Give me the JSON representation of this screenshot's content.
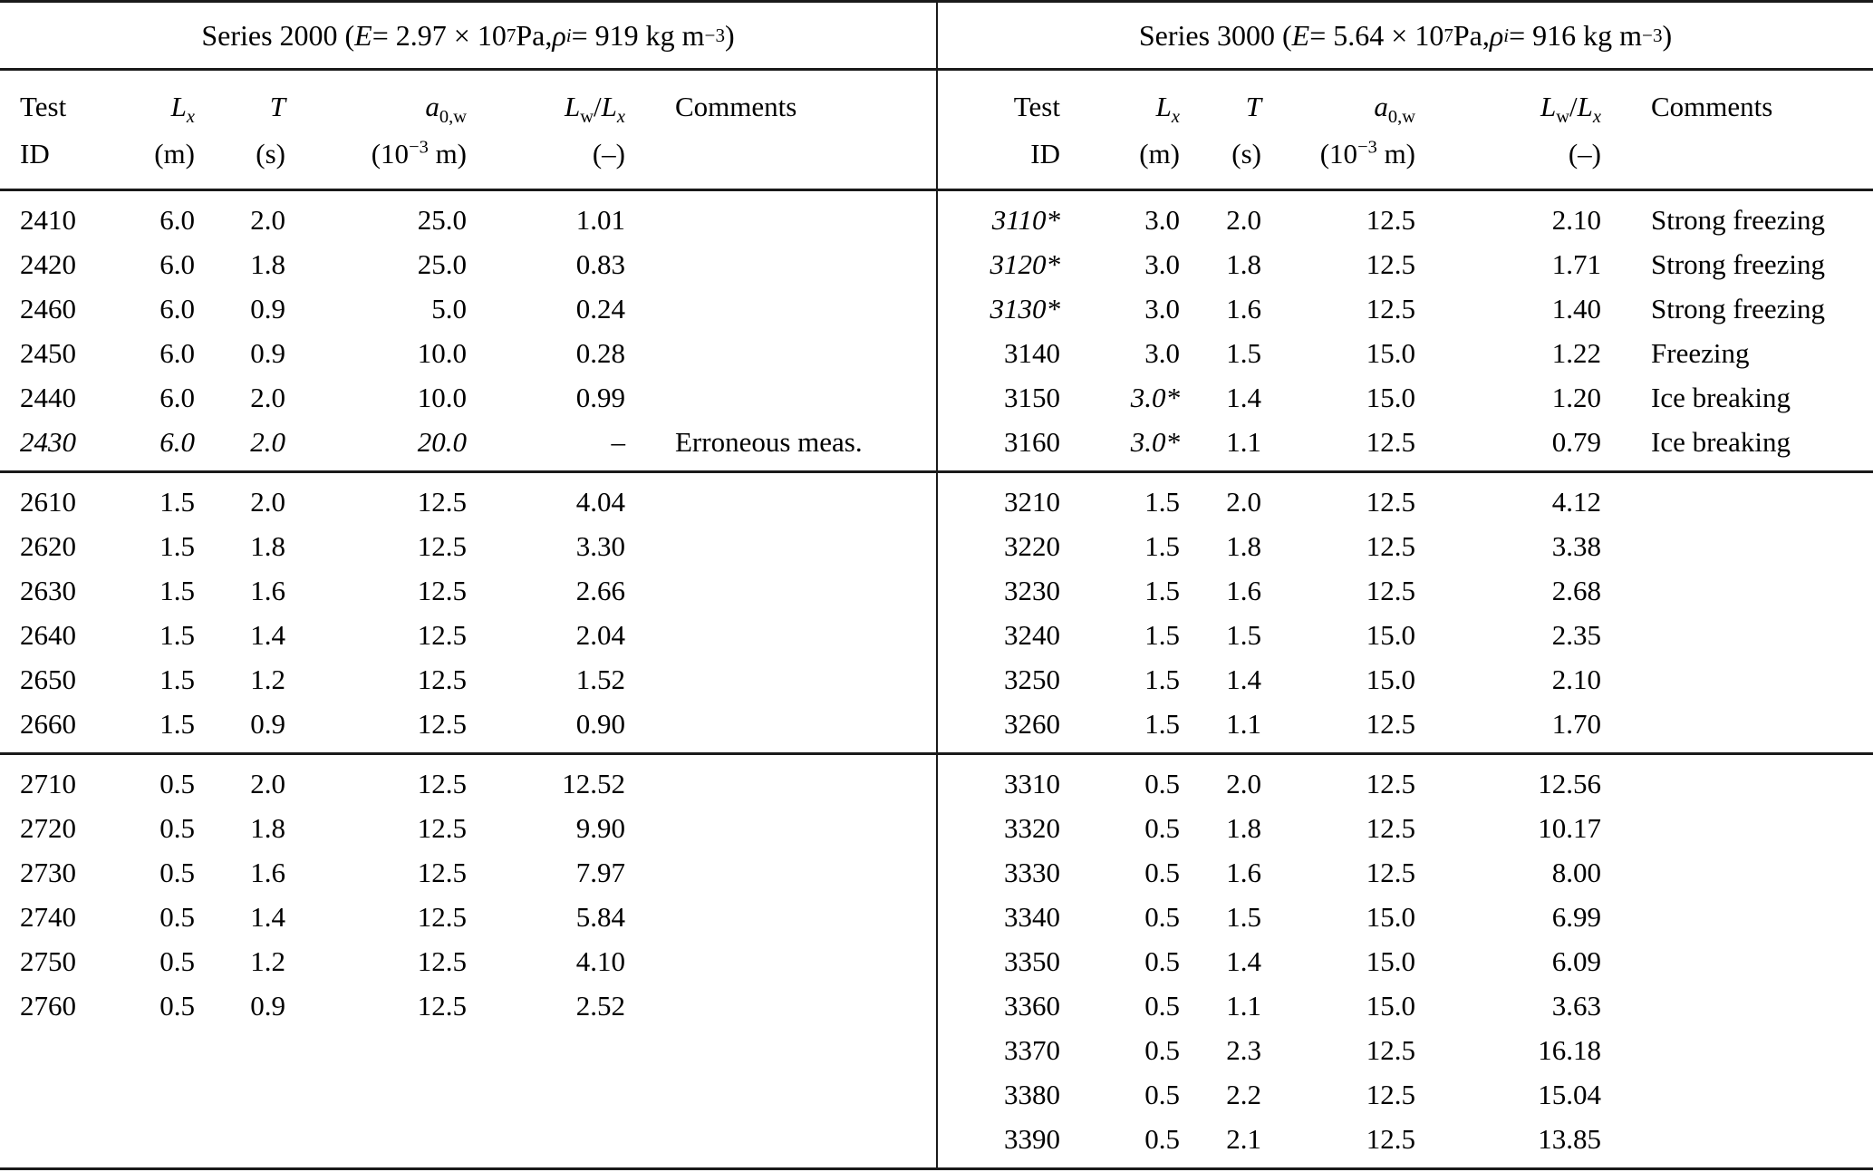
{
  "page": {
    "background": "#ffffff",
    "text_color": "#000000",
    "rule_color": "#1a1a1a"
  },
  "table": {
    "halves": [
      {
        "series_title_html": "Series 2000 (<i>E</i> = 2.97 × 10<sup>7</sup> Pa, <i>ρ</i><sub><i>i</i></sub> = 919 kg m<sup>−3</sup>)",
        "columns": [
          {
            "name": "test-id",
            "l1": "Test",
            "l2": "ID"
          },
          {
            "name": "lx",
            "l1": "<i>L</i><sub><i>x</i></sub>",
            "l2": "(m)"
          },
          {
            "name": "t",
            "l1": "<i>T</i>",
            "l2": "(s)"
          },
          {
            "name": "a0w",
            "l1": "<i>a</i><sub>0,w</sub>",
            "l2": "(10<sup>−3</sup> m)"
          },
          {
            "name": "lw-lx",
            "l1": "<i>L</i><sub>w</sub>/<i>L</i><sub><i>x</i></sub>",
            "l2": "(–)"
          },
          {
            "name": "comments",
            "l1": "Comments",
            "l2": ""
          }
        ],
        "groups": [
          {
            "rows": [
              [
                "2410",
                "6.0",
                "2.0",
                "25.0",
                "1.01",
                ""
              ],
              [
                "2420",
                "6.0",
                "1.8",
                "25.0",
                "0.83",
                ""
              ],
              [
                "2460",
                "6.0",
                "0.9",
                "5.0",
                "0.24",
                ""
              ],
              [
                "2450",
                "6.0",
                "0.9",
                "10.0",
                "0.28",
                ""
              ],
              [
                "2440",
                "6.0",
                "2.0",
                "10.0",
                "0.99",
                ""
              ],
              [
                "<i>2430</i>",
                "<i>6.0</i>",
                "<i>2.0</i>",
                "<i>20.0</i>",
                "–",
                "Erroneous meas."
              ]
            ]
          },
          {
            "rows": [
              [
                "2610",
                "1.5",
                "2.0",
                "12.5",
                "4.04",
                ""
              ],
              [
                "2620",
                "1.5",
                "1.8",
                "12.5",
                "3.30",
                ""
              ],
              [
                "2630",
                "1.5",
                "1.6",
                "12.5",
                "2.66",
                ""
              ],
              [
                "2640",
                "1.5",
                "1.4",
                "12.5",
                "2.04",
                ""
              ],
              [
                "2650",
                "1.5",
                "1.2",
                "12.5",
                "1.52",
                ""
              ],
              [
                "2660",
                "1.5",
                "0.9",
                "12.5",
                "0.90",
                ""
              ]
            ]
          },
          {
            "rows": [
              [
                "2710",
                "0.5",
                "2.0",
                "12.5",
                "12.52",
                ""
              ],
              [
                "2720",
                "0.5",
                "1.8",
                "12.5",
                "9.90",
                ""
              ],
              [
                "2730",
                "0.5",
                "1.6",
                "12.5",
                "7.97",
                ""
              ],
              [
                "2740",
                "0.5",
                "1.4",
                "12.5",
                "5.84",
                ""
              ],
              [
                "2750",
                "0.5",
                "1.2",
                "12.5",
                "4.10",
                ""
              ],
              [
                "2760",
                "0.5",
                "0.9",
                "12.5",
                "2.52",
                ""
              ]
            ]
          }
        ]
      },
      {
        "series_title_html": "Series 3000 (<i>E</i> = 5.64 × 10<sup>7</sup> Pa, <i>ρ</i><sub><i>i</i></sub> = 916 kg m<sup>−3</sup>)",
        "columns": [
          {
            "name": "test-id",
            "l1": "Test",
            "l2": "ID"
          },
          {
            "name": "lx",
            "l1": "<i>L</i><sub><i>x</i></sub>",
            "l2": "(m)"
          },
          {
            "name": "t",
            "l1": "<i>T</i>",
            "l2": "(s)"
          },
          {
            "name": "a0w",
            "l1": "<i>a</i><sub>0,w</sub>",
            "l2": "(10<sup>−3</sup> m)"
          },
          {
            "name": "lw-lx",
            "l1": "<i>L</i><sub>w</sub>/<i>L</i><sub><i>x</i></sub>",
            "l2": "(–)"
          },
          {
            "name": "comments",
            "l1": "Comments",
            "l2": ""
          }
        ],
        "groups": [
          {
            "rows": [
              [
                "<i>3110*</i>",
                "3.0",
                "2.0",
                "12.5",
                "2.10",
                "Strong freezing"
              ],
              [
                "<i>3120*</i>",
                "3.0",
                "1.8",
                "12.5",
                "1.71",
                "Strong freezing"
              ],
              [
                "<i>3130*</i>",
                "3.0",
                "1.6",
                "12.5",
                "1.40",
                "Strong freezing"
              ],
              [
                "3140",
                "3.0",
                "1.5",
                "15.0",
                "1.22",
                "Freezing"
              ],
              [
                "3150",
                "<i>3.0*</i>",
                "1.4",
                "15.0",
                "1.20",
                "Ice breaking"
              ],
              [
                "3160",
                "<i>3.0*</i>",
                "1.1",
                "12.5",
                "0.79",
                "Ice breaking"
              ]
            ]
          },
          {
            "rows": [
              [
                "3210",
                "1.5",
                "2.0",
                "12.5",
                "4.12",
                ""
              ],
              [
                "3220",
                "1.5",
                "1.8",
                "12.5",
                "3.38",
                ""
              ],
              [
                "3230",
                "1.5",
                "1.6",
                "12.5",
                "2.68",
                ""
              ],
              [
                "3240",
                "1.5",
                "1.5",
                "15.0",
                "2.35",
                ""
              ],
              [
                "3250",
                "1.5",
                "1.4",
                "15.0",
                "2.10",
                ""
              ],
              [
                "3260",
                "1.5",
                "1.1",
                "12.5",
                "1.70",
                ""
              ]
            ]
          },
          {
            "rows": [
              [
                "3310",
                "0.5",
                "2.0",
                "12.5",
                "12.56",
                ""
              ],
              [
                "3320",
                "0.5",
                "1.8",
                "12.5",
                "10.17",
                ""
              ],
              [
                "3330",
                "0.5",
                "1.6",
                "12.5",
                "8.00",
                ""
              ],
              [
                "3340",
                "0.5",
                "1.5",
                "15.0",
                "6.99",
                ""
              ],
              [
                "3350",
                "0.5",
                "1.4",
                "15.0",
                "6.09",
                ""
              ],
              [
                "3360",
                "0.5",
                "1.1",
                "15.0",
                "3.63",
                ""
              ],
              [
                "3370",
                "0.5",
                "2.3",
                "12.5",
                "16.18",
                ""
              ],
              [
                "3380",
                "0.5",
                "2.2",
                "12.5",
                "15.04",
                ""
              ],
              [
                "3390",
                "0.5",
                "2.1",
                "12.5",
                "13.85",
                ""
              ]
            ]
          }
        ]
      }
    ]
  }
}
